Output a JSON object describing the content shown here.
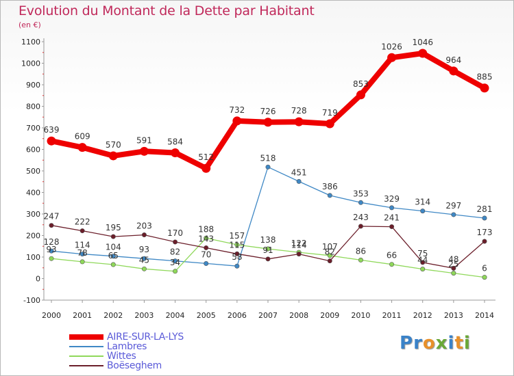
{
  "header": {
    "title": "Evolution du Montant de la Dette par Habitant",
    "subtitle": "(en €)"
  },
  "logo": {
    "letters": [
      "P",
      "r",
      "o",
      "x",
      "i",
      "t",
      "i"
    ],
    "colors": [
      "#3a82c8",
      "#3a82c8",
      "#e8902a",
      "#6aa838",
      "#3a82c8",
      "#e8902a",
      "#6aa838"
    ]
  },
  "chart_data": {
    "type": "line",
    "x": [
      "2000",
      "2001",
      "2002",
      "2003",
      "2004",
      "2005",
      "2006",
      "2007",
      "2008",
      "2009",
      "2010",
      "2011",
      "2012",
      "2013",
      "2014"
    ],
    "ylim": [
      -100,
      1100
    ],
    "yticks": [
      -100,
      0,
      100,
      200,
      300,
      400,
      500,
      600,
      700,
      800,
      900,
      1000,
      1100
    ],
    "grid": false,
    "legend_position": "bottom-left",
    "series": [
      {
        "name": "AIRE-SUR-LA-LYS",
        "color": "#ee0000",
        "emphasis": "thick",
        "values": [
          639,
          609,
          570,
          591,
          584,
          512,
          732,
          726,
          728,
          719,
          853,
          1026,
          1046,
          964,
          885
        ]
      },
      {
        "name": "Lambres",
        "color": "#3f88c5",
        "emphasis": "thin",
        "values": [
          128,
          114,
          104,
          93,
          82,
          70,
          58,
          518,
          451,
          386,
          353,
          329,
          314,
          297,
          281
        ]
      },
      {
        "name": "Wittes",
        "color": "#8fd85a",
        "emphasis": "thin",
        "values": [
          93,
          78,
          65,
          45,
          34,
          188,
          157,
          138,
          122,
          107,
          86,
          66,
          44,
          25,
          6
        ]
      },
      {
        "name": "Boëseghem",
        "color": "#6b1e2a",
        "emphasis": "thin",
        "values": [
          247,
          222,
          195,
          203,
          170,
          143,
          115,
          91,
          114,
          82,
          243,
          241,
          75,
          48,
          173
        ]
      }
    ]
  }
}
